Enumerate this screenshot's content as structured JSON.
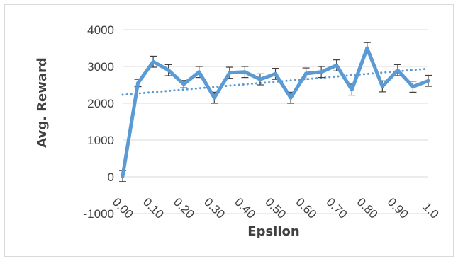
{
  "chart_data": {
    "type": "line",
    "title": "",
    "xlabel": "Epsilon",
    "ylabel": "Avg. Reward",
    "ylim": [
      -1000,
      4000
    ],
    "y_ticks": [
      4000,
      3000,
      2000,
      1000,
      0,
      -1000
    ],
    "y_tick_labels": [
      "4000",
      "3000",
      "2000",
      "1000",
      "0",
      "-1000"
    ],
    "x_tick_labels": [
      "0.00",
      "0.10",
      "0.20",
      "0.30",
      "0.40",
      "0.50",
      "0.60",
      "0.70",
      "0.80",
      "0.90",
      "1.0"
    ],
    "x": [
      0.0,
      0.05,
      0.1,
      0.15,
      0.2,
      0.25,
      0.3,
      0.35,
      0.4,
      0.45,
      0.5,
      0.55,
      0.6,
      0.65,
      0.7,
      0.75,
      0.8,
      0.85,
      0.9,
      0.95,
      1.0
    ],
    "grid": true,
    "legend": "none",
    "series": [
      {
        "values": [
          20,
          2550,
          3130,
          2900,
          2520,
          2850,
          2150,
          2830,
          2850,
          2650,
          2800,
          2150,
          2810,
          2850,
          3030,
          2370,
          3500,
          2460,
          2900,
          2450,
          2610
        ],
        "error": [
          150,
          100,
          150,
          150,
          100,
          150,
          150,
          150,
          150,
          150,
          150,
          150,
          150,
          150,
          150,
          150,
          150,
          150,
          150,
          150,
          150
        ],
        "color": "#5b9bd5"
      }
    ],
    "trendline": {
      "style": "dotted",
      "start": 2230,
      "end": 2940,
      "color": "#5b9bd5"
    }
  }
}
